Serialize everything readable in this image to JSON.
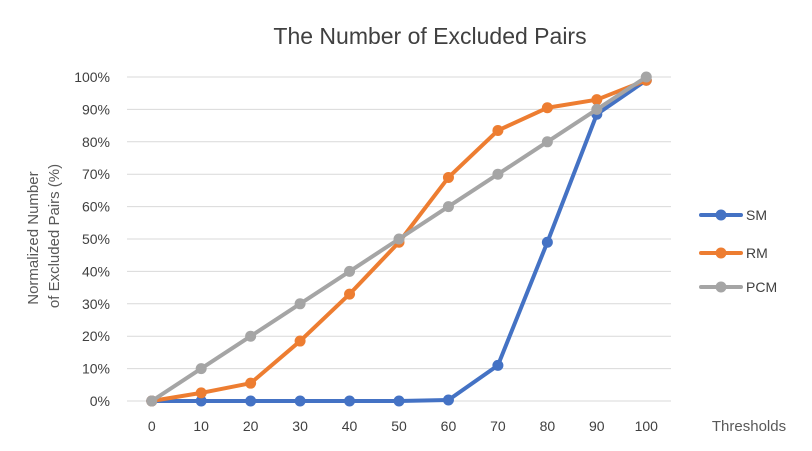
{
  "chart_data": {
    "type": "line",
    "title": "The Number of Excluded Pairs",
    "xlabel": "Thresholds",
    "ylabel": "Normalized Number of Excluded Pairs (%)",
    "ylabel_lines": [
      "Normalized Number",
      "of Excluded Pairs (%)"
    ],
    "categories": [
      "0",
      "10",
      "20",
      "30",
      "40",
      "50",
      "60",
      "70",
      "80",
      "90",
      "100"
    ],
    "ylim": [
      0,
      100
    ],
    "yticks": [
      "0%",
      "10%",
      "20%",
      "30%",
      "40%",
      "50%",
      "60%",
      "70%",
      "80%",
      "90%",
      "100%"
    ],
    "grid": true,
    "legend_position": "right",
    "series": [
      {
        "name": "SM",
        "color": "#4472C4",
        "values": [
          0,
          0,
          0,
          0,
          0,
          0,
          0.3,
          11,
          49,
          88.5,
          99
        ]
      },
      {
        "name": "RM",
        "color": "#ED7D31",
        "values": [
          0,
          2.5,
          5.5,
          18.5,
          33,
          49,
          69,
          83.5,
          90.5,
          93,
          99
        ]
      },
      {
        "name": "PCM",
        "color": "#A5A5A5",
        "values": [
          0,
          10,
          20,
          30,
          40,
          50,
          60,
          70,
          80,
          90,
          100
        ]
      }
    ]
  }
}
